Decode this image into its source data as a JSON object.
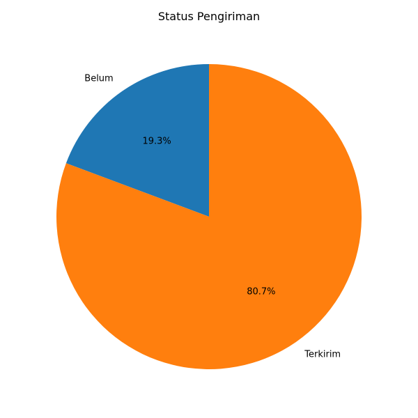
{
  "chart_data": {
    "type": "pie",
    "title": "Status Pengiriman",
    "start_angle_deg": 90,
    "direction": "counterclockwise",
    "slices": [
      {
        "label": "Belum",
        "value": 19.3,
        "pct_label": "19.3%",
        "color": "#1f77b4"
      },
      {
        "label": "Terkirim",
        "value": 80.7,
        "pct_label": "80.7%",
        "color": "#ff7f0e"
      }
    ]
  }
}
